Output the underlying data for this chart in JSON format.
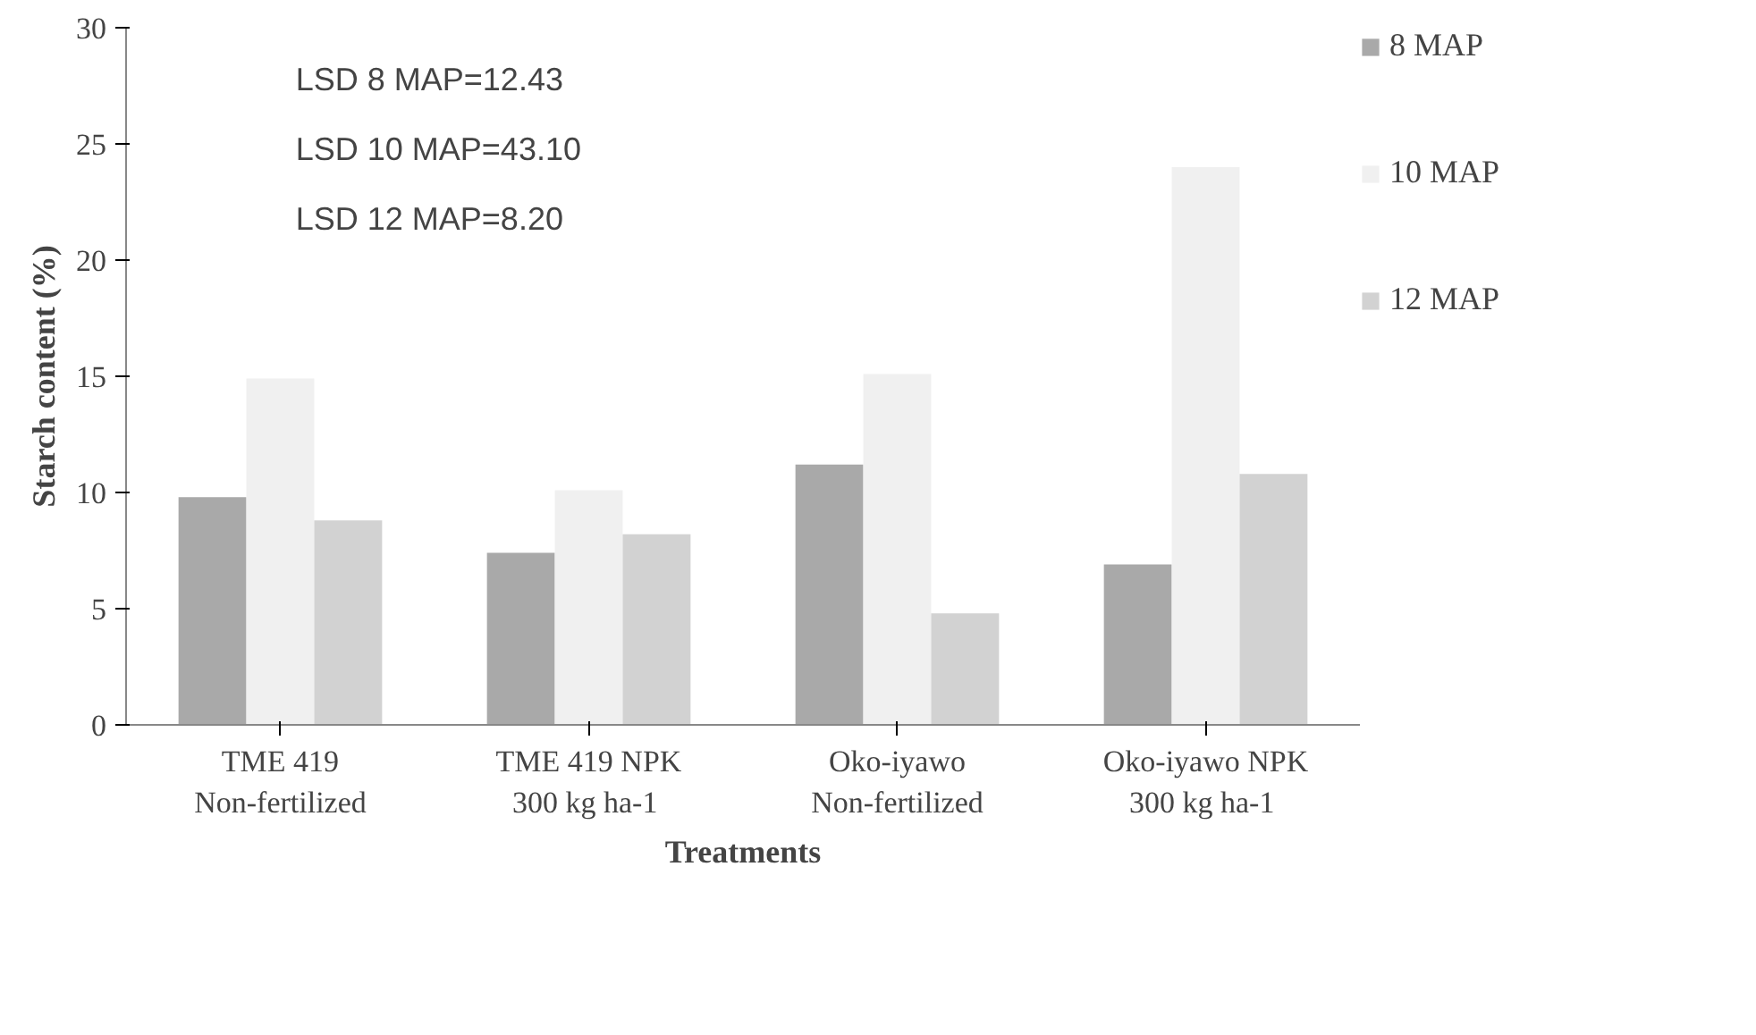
{
  "chart_data": {
    "type": "bar",
    "xlabel": "Treatments",
    "ylabel": "Starch content (%)",
    "categories": [
      "TME 419 Non-fertilized",
      "TME 419 NPK 300  kg ha-1",
      "Oko-iyawo Non-fertilized",
      "Oko-iyawo NPK 300  kg ha-1"
    ],
    "series": [
      {
        "name": "8 MAP",
        "color": "#a9a9a9",
        "values": [
          9.8,
          7.4,
          11.2,
          6.9
        ]
      },
      {
        "name": "10 MAP",
        "color": "#f0f0f0",
        "values": [
          14.9,
          10.1,
          15.1,
          24.0
        ]
      },
      {
        "name": "12 MAP",
        "color": "#d2d2d2",
        "values": [
          8.8,
          8.2,
          4.8,
          10.8
        ]
      }
    ],
    "ylim": [
      0,
      30
    ],
    "yticks": [
      0,
      5,
      10,
      15,
      20,
      25,
      30
    ],
    "grid": false,
    "legend": "right",
    "annotations": [
      "LSD 8 MAP=12.43",
      "LSD 10 MAP=43.10",
      "LSD 12 MAP=8.20"
    ]
  }
}
